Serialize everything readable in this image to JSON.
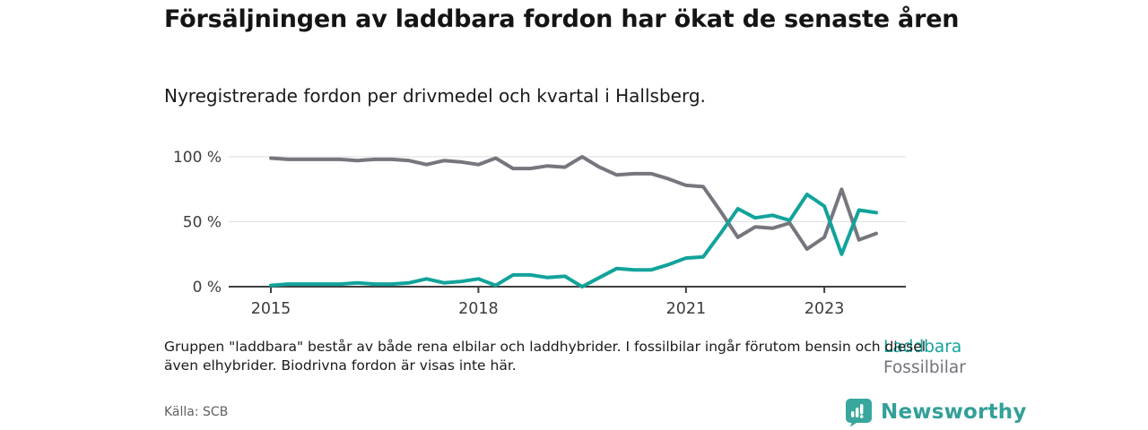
{
  "header": {
    "title": "Försäljningen av laddbara fordon har ökat de senaste åren",
    "subtitle": "Nyregistrerade fordon per drivmedel och kvartal i Hallsberg."
  },
  "chart_data": {
    "type": "line",
    "x_start": "2015 Q1",
    "x_end": "2023 Q4",
    "x_interval": "quarter",
    "series": [
      {
        "name": "Fossilbilar",
        "color": "#76767e",
        "values": [
          99,
          98,
          98,
          98,
          98,
          97,
          98,
          98,
          97,
          94,
          97,
          96,
          94,
          99,
          91,
          91,
          93,
          92,
          100,
          92,
          86,
          87,
          87,
          83,
          78,
          77,
          58,
          38,
          46,
          45,
          49,
          29,
          38,
          75,
          36,
          41
        ]
      },
      {
        "name": "Laddbara",
        "color": "#12a39b",
        "values": [
          1,
          2,
          2,
          2,
          2,
          3,
          2,
          2,
          3,
          6,
          3,
          4,
          6,
          1,
          9,
          9,
          7,
          8,
          0,
          7,
          14,
          13,
          13,
          17,
          22,
          23,
          41,
          60,
          53,
          55,
          51,
          71,
          62,
          25,
          59,
          57
        ]
      }
    ],
    "ylim": [
      0,
      100
    ],
    "yticks": [
      {
        "value": 0,
        "label": "0 %"
      },
      {
        "value": 50,
        "label": "50 %"
      },
      {
        "value": 100,
        "label": "100 %"
      }
    ],
    "xticks": [
      {
        "index": 0,
        "label": "2015"
      },
      {
        "index": 12,
        "label": "2018"
      },
      {
        "index": 24,
        "label": "2021"
      },
      {
        "index": 32,
        "label": "2023"
      }
    ],
    "grid": "horizontal",
    "legend_position": "right of line ends"
  },
  "footnote": "Gruppen \"laddbara\" består av både rena elbilar och laddhybrider. I fossilbilar ingår förutom bensin och diesel även elhybrider. Biodrivna fordon är visas inte här.",
  "source": "Källa: SCB",
  "logo": {
    "text": "Newsworthy",
    "icon": "bar-chart-pin-icon",
    "badge_color": "#3aa79e",
    "text_color": "#33a098"
  }
}
